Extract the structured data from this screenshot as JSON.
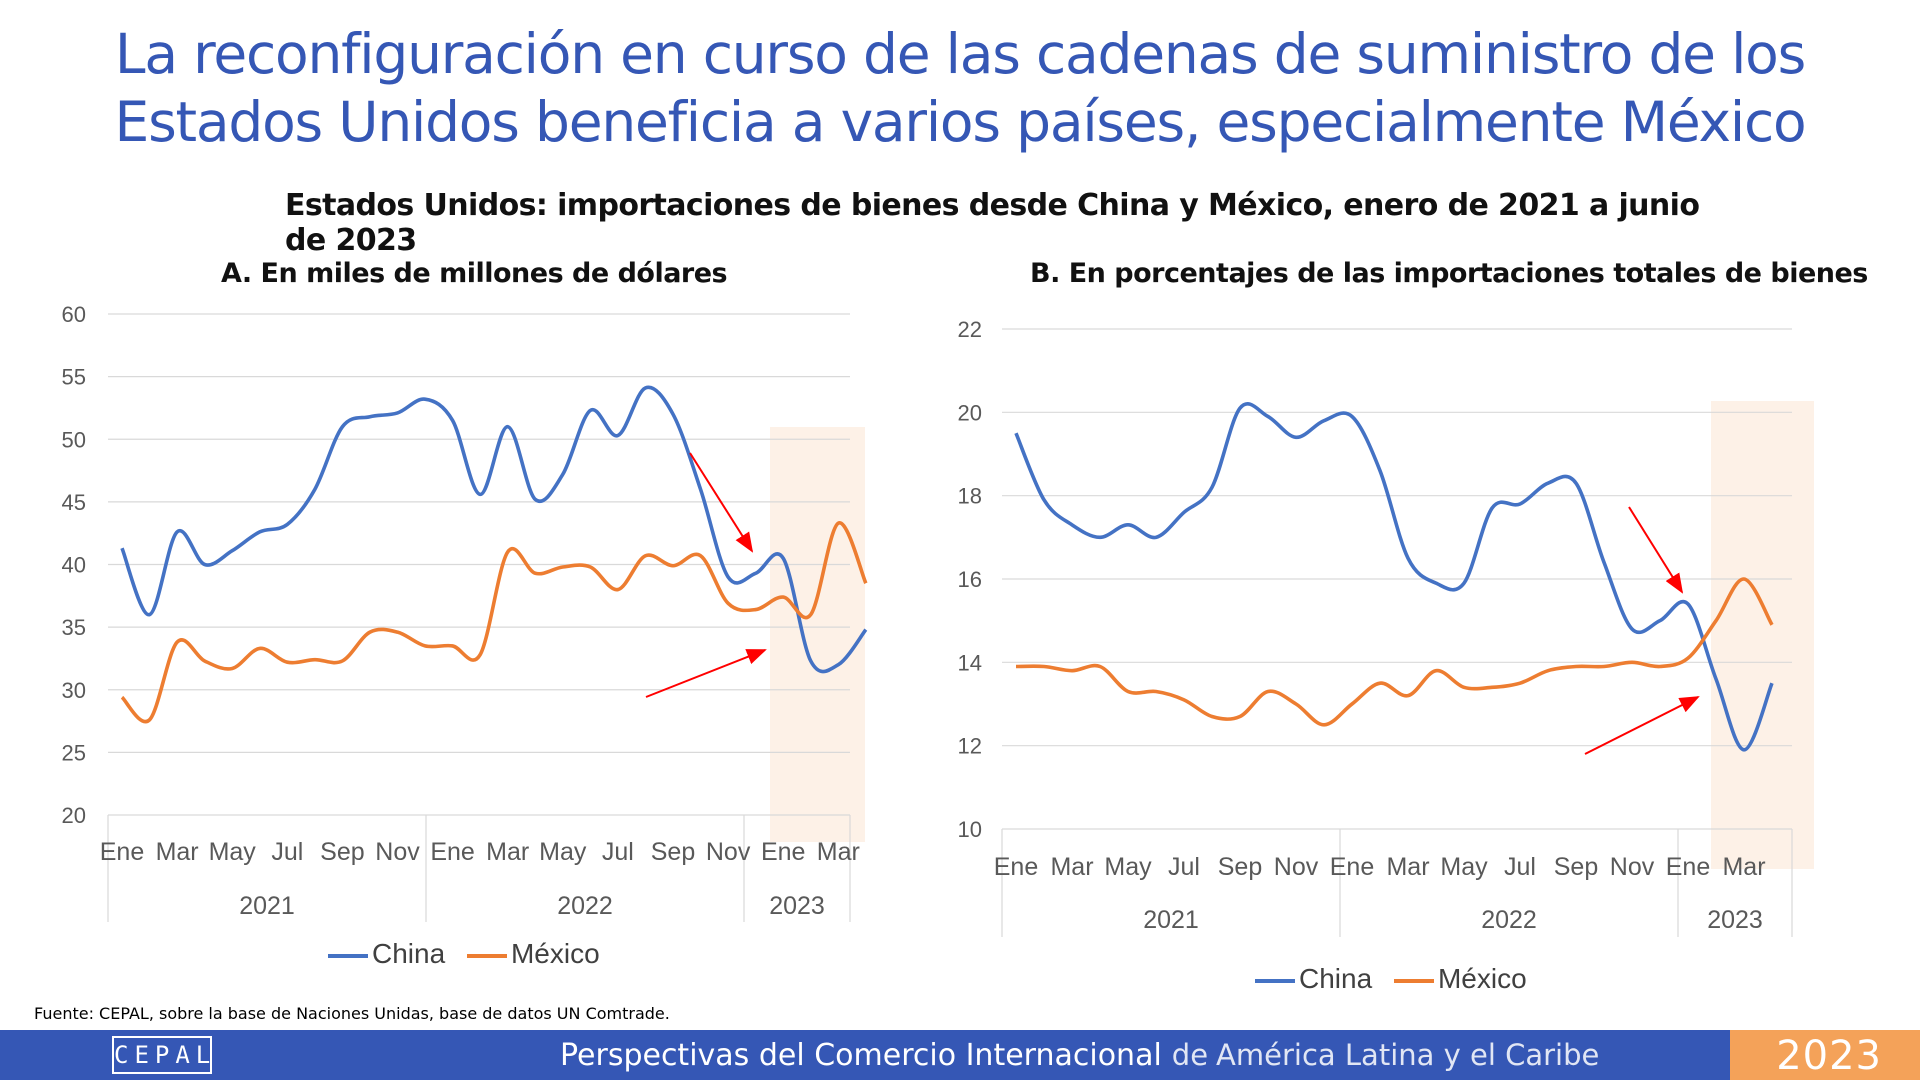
{
  "slide": {
    "title_line1": "La reconfiguración en curso de las cadenas de suministro de los",
    "title_line2": "Estados Unidos beneficia a varios países, especialmente México",
    "subtitle": "Estados Unidos: importaciones de bienes desde China y México, enero de 2021 a junio de 2023",
    "source": "Fuente: CEPAL, sobre la base de Naciones Unidas, base de datos UN Comtrade."
  },
  "footer": {
    "logo": "CEPAL",
    "text_main": "Perspectivas del Comercio Internacional",
    "text_de": "de",
    "text_region": "América Latina y el Caribe",
    "year": "2023"
  },
  "colors": {
    "china": "#4472c4",
    "mexico": "#ed7d31",
    "highlight": "#fdf1e7",
    "arrow": "#ff0000",
    "title": "#3557b5"
  },
  "chart_data": [
    {
      "type": "line",
      "title": "A. En miles de millones de dólares",
      "month_labels": [
        "Ene",
        "Mar",
        "May",
        "Jul",
        "Sep",
        "Nov",
        "Ene",
        "Mar",
        "May",
        "Jul",
        "Sep",
        "Nov",
        "Ene",
        "Mar"
      ],
      "year_labels": [
        "2021",
        "2022",
        "2023"
      ],
      "ylim": [
        20,
        60
      ],
      "yticks": [
        "20",
        "25",
        "30",
        "35",
        "40",
        "45",
        "50",
        "55",
        "60"
      ],
      "grid": true,
      "legend": "bottom",
      "highlight_period": "2023",
      "series": [
        {
          "name": "China",
          "values": [
            41.3,
            36.0,
            42.6,
            40.0,
            41.1,
            42.6,
            43.2,
            46.0,
            51.0,
            51.8,
            52.1,
            53.2,
            51.5,
            45.6,
            51.0,
            45.2,
            47.2,
            52.3,
            50.3,
            54.1,
            52.0,
            46.0,
            39.0,
            39.3,
            40.5,
            32.3,
            32.0,
            34.8
          ]
        },
        {
          "name": "México",
          "values": [
            29.4,
            27.6,
            33.8,
            32.3,
            31.7,
            33.3,
            32.2,
            32.4,
            32.3,
            34.6,
            34.6,
            33.5,
            33.5,
            32.8,
            41.0,
            39.3,
            39.8,
            39.8,
            38.0,
            40.7,
            39.9,
            40.7,
            36.9,
            36.4,
            37.4,
            36.0,
            43.3,
            38.5
          ]
        }
      ]
    },
    {
      "type": "line",
      "title": "B. En porcentajes de las importaciones totales de bienes",
      "month_labels": [
        "Ene",
        "Mar",
        "May",
        "Jul",
        "Sep",
        "Nov",
        "Ene",
        "Mar",
        "May",
        "Jul",
        "Sep",
        "Nov",
        "Ene",
        "Mar"
      ],
      "year_labels": [
        "2021",
        "2022",
        "2023"
      ],
      "ylim": [
        10,
        22
      ],
      "yticks": [
        "10",
        "12",
        "14",
        "16",
        "18",
        "20",
        "22"
      ],
      "grid": true,
      "legend": "bottom",
      "highlight_period": "2023",
      "series": [
        {
          "name": "China",
          "values": [
            19.5,
            17.9,
            17.3,
            17.0,
            17.3,
            17.0,
            17.6,
            18.2,
            20.1,
            19.9,
            19.4,
            19.8,
            19.9,
            18.6,
            16.5,
            15.9,
            15.9,
            17.7,
            17.8,
            18.3,
            18.3,
            16.4,
            14.8,
            15.0,
            15.4,
            13.6,
            11.9,
            13.5
          ]
        },
        {
          "name": "México",
          "values": [
            13.9,
            13.9,
            13.8,
            13.9,
            13.3,
            13.3,
            13.1,
            12.7,
            12.7,
            13.3,
            13.0,
            12.5,
            13.0,
            13.5,
            13.2,
            13.8,
            13.4,
            13.4,
            13.5,
            13.8,
            13.9,
            13.9,
            14.0,
            13.9,
            14.1,
            15.0,
            16.0,
            14.9
          ]
        }
      ]
    }
  ]
}
